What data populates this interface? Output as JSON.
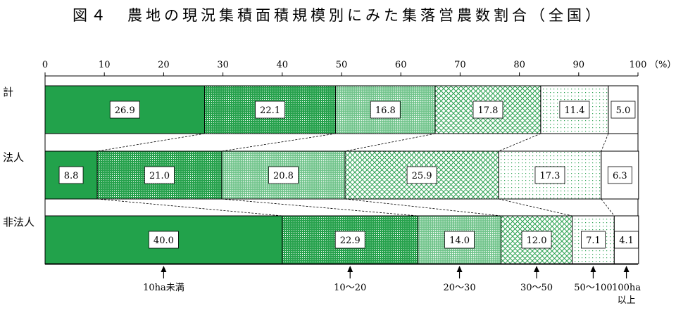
{
  "title": "図４　農地の現況集積面積規模別にみた集落営農数割合（全国）",
  "chart_data": {
    "type": "bar",
    "orientation": "horizontal",
    "stacked": "percent",
    "unit_label": "（%）",
    "xlim": [
      0,
      100
    ],
    "x_ticks": [
      "0",
      "10",
      "20",
      "30",
      "40",
      "50",
      "60",
      "70",
      "80",
      "90",
      "100"
    ],
    "categories": [
      "計",
      "法人",
      "非法人"
    ],
    "series": [
      {
        "name": "10ha未満",
        "values": [
          26.9,
          8.8,
          40.0
        ],
        "labels": [
          "26.9",
          "8.8",
          "40.0"
        ],
        "color": "#22a24b",
        "pattern": "solid"
      },
      {
        "name": "10～20",
        "values": [
          22.1,
          21.0,
          22.9
        ],
        "labels": [
          "22.1",
          "21.0",
          "22.9"
        ],
        "color": "#22a24b",
        "pattern": "dense-dots"
      },
      {
        "name": "20～30",
        "values": [
          16.8,
          20.8,
          14.0
        ],
        "labels": [
          "16.8",
          "20.8",
          "14.0"
        ],
        "color": "#22a24b",
        "pattern": "medium-dots"
      },
      {
        "name": "30～50",
        "values": [
          17.8,
          25.9,
          12.0
        ],
        "labels": [
          "17.8",
          "25.9",
          "12.0"
        ],
        "color": "#22a24b",
        "pattern": "crosshatch"
      },
      {
        "name": "50～100",
        "values": [
          11.4,
          17.3,
          7.1
        ],
        "labels": [
          "11.4",
          "17.3",
          "7.1"
        ],
        "color": "#22a24b",
        "pattern": "sparse-dots"
      },
      {
        "name": "100ha\n以上",
        "values": [
          5.0,
          6.3,
          4.1
        ],
        "labels": [
          "5.0",
          "6.3",
          "4.1"
        ],
        "color": "#ffffff",
        "pattern": "none"
      }
    ],
    "connector_lines": "dashed",
    "legend_placement": "bottom-arrows"
  }
}
